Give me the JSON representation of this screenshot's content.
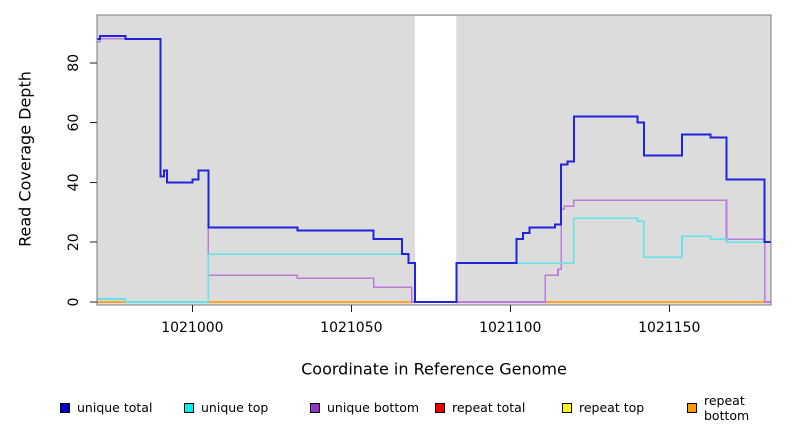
{
  "chart_data": {
    "type": "line",
    "subtype": "step-after",
    "title": "",
    "xlabel": "Coordinate in Reference Genome",
    "ylabel": "Read Coverage Depth",
    "xlim": [
      1020970,
      1021182
    ],
    "ylim": [
      0,
      96
    ],
    "x_ticks": [
      1021000,
      1021050,
      1021100,
      1021150
    ],
    "y_ticks": [
      0,
      20,
      40,
      60,
      80
    ],
    "grid": "off",
    "legend_position": "bottom",
    "plot_bg": "#DCDCDC",
    "box_color": "#7a7a7a",
    "mask_region": {
      "x_start": 1021070,
      "x_end": 1021083,
      "color": "#FFFFFF"
    },
    "draw_order": [
      4,
      3,
      5,
      2,
      1,
      0
    ],
    "series": [
      {
        "name": "unique total",
        "line_color": "#2222DF",
        "legend_color": "#0000CC",
        "width": 2,
        "points": [
          [
            1020970,
            88
          ],
          [
            1020971,
            89
          ],
          [
            1020979,
            88
          ],
          [
            1020990,
            42
          ],
          [
            1020991,
            44
          ],
          [
            1020992,
            40
          ],
          [
            1021000,
            41
          ],
          [
            1021002,
            44
          ],
          [
            1021005,
            25
          ],
          [
            1021033,
            24
          ],
          [
            1021057,
            21
          ],
          [
            1021066,
            16
          ],
          [
            1021068,
            13
          ],
          [
            1021070,
            0
          ],
          [
            1021083,
            13
          ],
          [
            1021102,
            21
          ],
          [
            1021104,
            23
          ],
          [
            1021106,
            25
          ],
          [
            1021114,
            26
          ],
          [
            1021116,
            46
          ],
          [
            1021118,
            47
          ],
          [
            1021120,
            62
          ],
          [
            1021140,
            60
          ],
          [
            1021142,
            49
          ],
          [
            1021154,
            56
          ],
          [
            1021163,
            55
          ],
          [
            1021168,
            41
          ],
          [
            1021180,
            20
          ],
          [
            1021182,
            20
          ]
        ]
      },
      {
        "name": "unique top",
        "line_color": "#5FE4EA",
        "legend_color": "#00EEEE",
        "width": 1.6,
        "points": [
          [
            1020970,
            1
          ],
          [
            1020979,
            0
          ],
          [
            1021005,
            16
          ],
          [
            1021068,
            13
          ],
          [
            1021070,
            0
          ],
          [
            1021083,
            13
          ],
          [
            1021120,
            28
          ],
          [
            1021140,
            27
          ],
          [
            1021142,
            15
          ],
          [
            1021154,
            22
          ],
          [
            1021163,
            21
          ],
          [
            1021168,
            20
          ],
          [
            1021182,
            20
          ]
        ]
      },
      {
        "name": "unique bottom",
        "line_color": "#BC7BDC",
        "legend_color": "#9932CC",
        "width": 1.6,
        "points": [
          [
            1020970,
            87
          ],
          [
            1020971,
            88
          ],
          [
            1020990,
            42
          ],
          [
            1020991,
            44
          ],
          [
            1020992,
            40
          ],
          [
            1021000,
            41
          ],
          [
            1021002,
            44
          ],
          [
            1021005,
            9
          ],
          [
            1021033,
            8
          ],
          [
            1021057,
            5
          ],
          [
            1021069,
            0
          ],
          [
            1021111,
            9
          ],
          [
            1021115,
            11
          ],
          [
            1021116,
            31
          ],
          [
            1021117,
            32
          ],
          [
            1021120,
            34
          ],
          [
            1021168,
            21
          ],
          [
            1021180,
            0
          ],
          [
            1021182,
            0
          ]
        ]
      },
      {
        "name": "repeat total",
        "line_color": "#CC2222",
        "legend_color": "#EE0000",
        "width": 1.6,
        "points": [
          [
            1020970,
            0
          ],
          [
            1021182,
            0
          ]
        ]
      },
      {
        "name": "repeat top",
        "line_color": "#E8E800",
        "legend_color": "#FFFF00",
        "width": 1.6,
        "points": [
          [
            1020970,
            0
          ],
          [
            1021182,
            0
          ]
        ]
      },
      {
        "name": "repeat bottom",
        "line_color": "#FFA424",
        "legend_color": "#FF9900",
        "width": 2,
        "points": [
          [
            1020970,
            0
          ],
          [
            1021182,
            0
          ]
        ]
      }
    ]
  }
}
